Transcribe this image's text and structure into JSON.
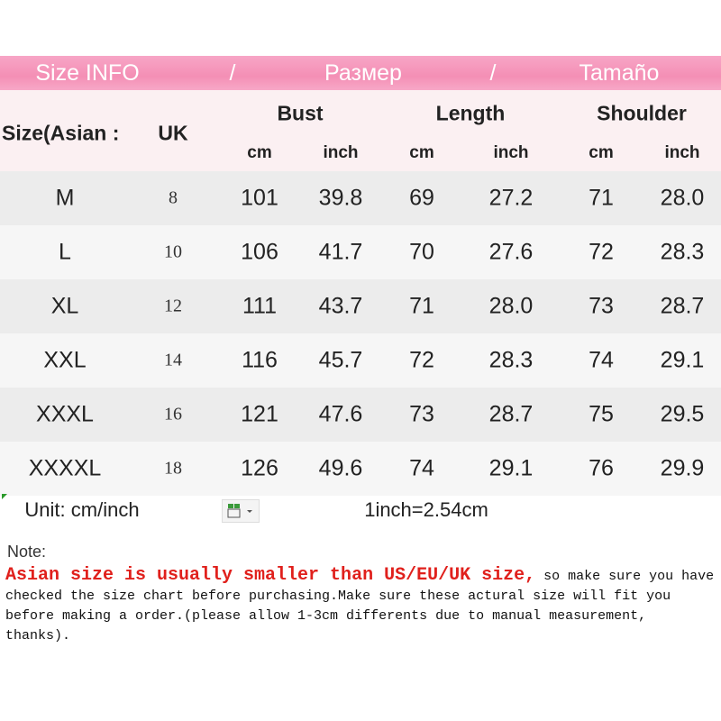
{
  "banner": [
    "Size INFO",
    "/",
    "Размер",
    "/",
    "Tamaño"
  ],
  "header": {
    "size": "Size(Asian :",
    "uk": "UK",
    "groups": [
      "Bust",
      "Length",
      "Shoulder"
    ],
    "units": [
      "cm",
      "inch",
      "cm",
      "inch",
      "cm",
      "inch"
    ]
  },
  "table": {
    "rows": [
      [
        "M",
        "8",
        "101",
        "39.8",
        "69",
        "27.2",
        "71",
        "28.0"
      ],
      [
        "L",
        "10",
        "106",
        "41.7",
        "70",
        "27.6",
        "72",
        "28.3"
      ],
      [
        "XL",
        "12",
        "111",
        "43.7",
        "71",
        "28.0",
        "73",
        "28.7"
      ],
      [
        "XXL",
        "14",
        "116",
        "45.7",
        "72",
        "28.3",
        "74",
        "29.1"
      ],
      [
        "XXXL",
        "16",
        "121",
        "47.6",
        "73",
        "28.7",
        "75",
        "29.5"
      ],
      [
        "XXXXL",
        "18",
        "126",
        "49.6",
        "74",
        "29.1",
        "76",
        "29.9"
      ]
    ]
  },
  "footer": {
    "unit": "Unit: cm/inch",
    "conversion": "1inch=2.54cm"
  },
  "note": {
    "label": "Note:",
    "highlight": "Asian size is usually smaller than US/EU/UK size,",
    "body": "so make sure you have checked the size chart before purchasing.Make sure these actural size will fit you before making a order.(please allow 1-3cm differents due to manual measurement, thanks)."
  }
}
